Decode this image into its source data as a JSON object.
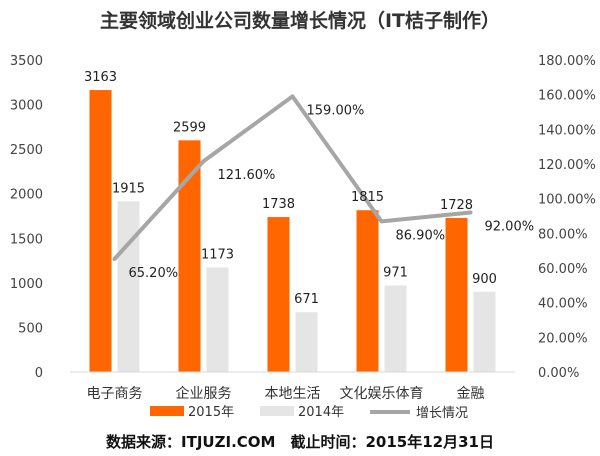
{
  "chart_data": {
    "type": "bar",
    "title": "主要领域创业公司数量增长情况（IT桔子制作）",
    "categories": [
      "电子商务",
      "企业服务",
      "本地生活",
      "文化娱乐体育",
      "金融"
    ],
    "series": [
      {
        "name": "2015年",
        "type": "bar",
        "axis": "left",
        "color": "#FF6600",
        "values": [
          3163,
          2599,
          1738,
          1815,
          1728
        ]
      },
      {
        "name": "2014年",
        "type": "bar",
        "axis": "left",
        "color": "#E5E5E5",
        "values": [
          1915,
          1173,
          671,
          971,
          900
        ]
      },
      {
        "name": "增长情况",
        "type": "line",
        "axis": "right",
        "color": "#A6A6A6",
        "values": [
          65.2,
          121.6,
          159.0,
          86.9,
          92.0
        ],
        "labels": [
          "65.20%",
          "121.60%",
          "159.00%",
          "86.90%",
          "92.00%"
        ]
      }
    ],
    "y_left": {
      "ylim": [
        0,
        3500
      ],
      "ticks": [
        "0",
        "500",
        "1000",
        "1500",
        "2000",
        "2500",
        "3000",
        "3500"
      ]
    },
    "y_right": {
      "ylim": [
        0,
        180
      ],
      "ticks": [
        "0.00%",
        "20.00%",
        "40.00%",
        "60.00%",
        "80.00%",
        "100.00%",
        "120.00%",
        "140.00%",
        "160.00%",
        "180.00%"
      ]
    },
    "grid": false,
    "legend_position": "bottom"
  },
  "source_note": "数据来源：ITJUZI.COM　截止时间：2015年12月31日"
}
